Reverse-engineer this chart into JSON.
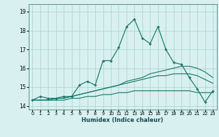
{
  "title": "",
  "xlabel": "Humidex (Indice chaleur)",
  "x": [
    0,
    1,
    2,
    3,
    4,
    5,
    6,
    7,
    8,
    9,
    10,
    11,
    12,
    13,
    14,
    15,
    16,
    17,
    18,
    19,
    20,
    21,
    22,
    23
  ],
  "line1": [
    14.3,
    14.5,
    14.4,
    14.4,
    14.5,
    14.5,
    15.1,
    15.3,
    15.1,
    16.4,
    16.4,
    17.1,
    18.2,
    18.6,
    17.6,
    17.3,
    18.2,
    17.0,
    16.3,
    16.2,
    15.5,
    14.9,
    14.2,
    14.8
  ],
  "line2": [
    14.3,
    14.3,
    14.3,
    14.4,
    14.4,
    14.5,
    14.6,
    14.7,
    14.8,
    14.9,
    15.0,
    15.1,
    15.3,
    15.4,
    15.5,
    15.7,
    15.8,
    15.9,
    16.0,
    16.1,
    16.1,
    16.0,
    15.8,
    15.5
  ],
  "line3": [
    14.3,
    14.3,
    14.3,
    14.4,
    14.4,
    14.5,
    14.6,
    14.7,
    14.8,
    14.9,
    15.0,
    15.1,
    15.2,
    15.3,
    15.4,
    15.5,
    15.6,
    15.6,
    15.7,
    15.7,
    15.7,
    15.6,
    15.4,
    15.2
  ],
  "line4": [
    14.3,
    14.3,
    14.3,
    14.3,
    14.3,
    14.4,
    14.4,
    14.5,
    14.5,
    14.6,
    14.6,
    14.7,
    14.7,
    14.8,
    14.8,
    14.8,
    14.8,
    14.8,
    14.8,
    14.8,
    14.8,
    14.7,
    14.7,
    14.7
  ],
  "line_color": "#1a7a6a",
  "bg_color": "#d8f0f0",
  "grid_color": "#aed4d4",
  "ylim": [
    13.8,
    19.4
  ],
  "yticks": [
    14,
    15,
    16,
    17,
    18,
    19
  ],
  "xlim": [
    -0.5,
    23.5
  ],
  "y_partial_label": "19"
}
